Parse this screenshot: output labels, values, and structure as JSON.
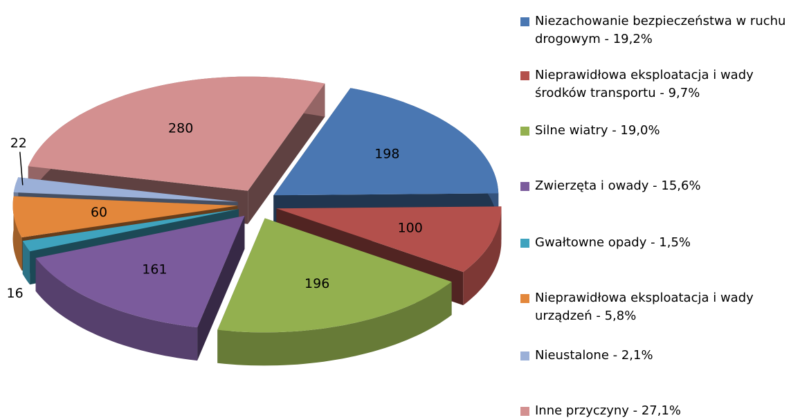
{
  "chart_data": {
    "type": "pie",
    "categories": [
      "Niezachowanie bezpieczeństwa w ruchu drogowym - 19,2%",
      "Nieprawidłowa eksploatacja i wady środków transportu - 9,7%",
      "Silne wiatry - 19,0%",
      "Zwierzęta i owady - 15,6%",
      "Gwałtowne opady - 1,5%",
      "Nieprawidłowa eksploatacja i wady urządzeń - 5,8%",
      "Nieustalone - 2,1%",
      "Inne przyczyny - 27,1%"
    ],
    "values": [
      198,
      100,
      196,
      161,
      16,
      60,
      22,
      280
    ],
    "colors": [
      "#4a77b2",
      "#b3504c",
      "#93b04f",
      "#7b5b9c",
      "#3fa3be",
      "#e3873b",
      "#9bb0d8",
      "#d39090"
    ]
  }
}
